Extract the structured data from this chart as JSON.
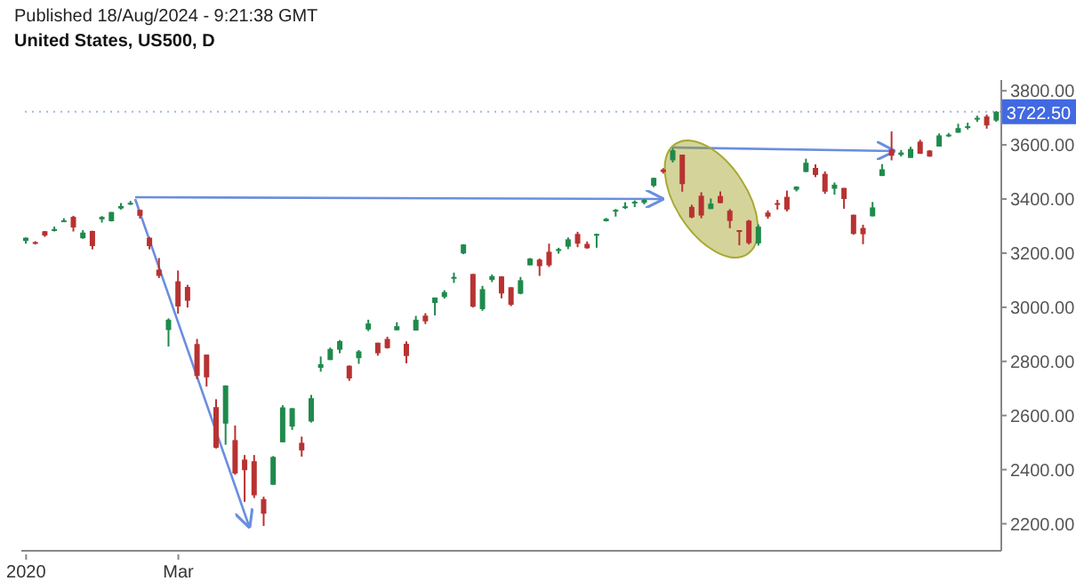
{
  "chart_data": {
    "type": "candlestick",
    "title": "United States, US500, D",
    "subtitle": "Published 18/Aug/2024 - 9:21:38 GMT",
    "categories": [
      "2020",
      null,
      null,
      null,
      null,
      null,
      null,
      null,
      null,
      null,
      null,
      null,
      null,
      null,
      null,
      null,
      "Mar",
      null,
      null,
      null,
      null,
      null,
      null,
      null,
      null,
      null,
      null,
      null,
      null,
      null,
      null,
      null,
      null,
      null,
      null,
      null,
      null,
      null,
      null,
      null,
      null,
      null,
      null,
      null,
      null,
      null,
      null,
      null,
      null,
      null,
      null,
      null,
      null,
      null,
      null,
      null,
      null,
      null,
      null,
      null,
      null,
      null,
      null,
      null,
      null,
      null,
      null,
      null,
      null,
      null,
      null,
      null,
      null,
      null,
      null,
      null,
      null,
      null,
      null,
      null,
      null,
      null,
      null,
      null,
      null,
      null,
      null,
      null,
      null,
      null,
      null,
      null,
      null,
      null,
      null,
      null,
      null,
      null,
      null,
      null,
      null,
      null,
      null
    ],
    "ohlc": [
      [
        3245,
        3258,
        3235,
        3257
      ],
      [
        3241,
        3244,
        3232,
        3237
      ],
      [
        3281,
        3282,
        3260,
        3265
      ],
      [
        3282,
        3298,
        3280,
        3289
      ],
      [
        3321,
        3329,
        3316,
        3321
      ],
      [
        3334,
        3338,
        3280,
        3295
      ],
      [
        3255,
        3285,
        3253,
        3276
      ],
      [
        3282,
        3283,
        3214,
        3226
      ],
      [
        3325,
        3337,
        3313,
        3334
      ],
      [
        3318,
        3352,
        3317,
        3352
      ],
      [
        3365,
        3385,
        3361,
        3374
      ],
      [
        3380,
        3393,
        3378,
        3386
      ],
      [
        3360,
        3360,
        3328,
        3338
      ],
      [
        3257,
        3260,
        3214,
        3226
      ],
      [
        3139,
        3182,
        3108,
        3116
      ],
      [
        2916,
        2959,
        2855,
        2954
      ],
      [
        3096,
        3136,
        2976,
        3003
      ],
      [
        3075,
        3083,
        2999,
        3024
      ],
      [
        2864,
        2883,
        2734,
        2746
      ],
      [
        2825,
        2825,
        2707,
        2741
      ],
      [
        2631,
        2660,
        2478,
        2481
      ],
      [
        2570,
        2711,
        2492,
        2711
      ],
      [
        2509,
        2563,
        2381,
        2386
      ],
      [
        2437,
        2454,
        2281,
        2398
      ],
      [
        2431,
        2454,
        2295,
        2305
      ],
      [
        2291,
        2300,
        2192,
        2237
      ],
      [
        2344,
        2450,
        2344,
        2447
      ],
      [
        2501,
        2638,
        2501,
        2630
      ],
      [
        2559,
        2627,
        2547,
        2627
      ],
      [
        2499,
        2522,
        2448,
        2471
      ],
      [
        2578,
        2676,
        2574,
        2664
      ],
      [
        2776,
        2818,
        2762,
        2790
      ],
      [
        2805,
        2851,
        2805,
        2846
      ],
      [
        2843,
        2879,
        2830,
        2875
      ],
      [
        2784,
        2785,
        2728,
        2737
      ],
      [
        2812,
        2842,
        2791,
        2837
      ],
      [
        2918,
        2954,
        2912,
        2940
      ],
      [
        2869,
        2869,
        2821,
        2830
      ],
      [
        2883,
        2891,
        2847,
        2849
      ],
      [
        2915,
        2945,
        2915,
        2930
      ],
      [
        2865,
        2874,
        2793,
        2820
      ],
      [
        2914,
        2968,
        2914,
        2954
      ],
      [
        2969,
        2978,
        2938,
        2948
      ],
      [
        3016,
        3036,
        2970,
        3036
      ],
      [
        3038,
        3063,
        3032,
        3056
      ],
      [
        3111,
        3128,
        3090,
        3112
      ],
      [
        3199,
        3233,
        3196,
        3232
      ],
      [
        3123,
        3123,
        2999,
        3002
      ],
      [
        2993,
        3079,
        2987,
        3067
      ],
      [
        3101,
        3121,
        3093,
        3115
      ],
      [
        3114,
        3115,
        3033,
        3051
      ],
      [
        3074,
        3074,
        3004,
        3009
      ],
      [
        3050,
        3112,
        3048,
        3100
      ],
      [
        3155,
        3182,
        3155,
        3180
      ],
      [
        3176,
        3180,
        3116,
        3152
      ],
      [
        3205,
        3235,
        3149,
        3155
      ],
      [
        3208,
        3220,
        3198,
        3215
      ],
      [
        3224,
        3258,
        3215,
        3251
      ],
      [
        3271,
        3279,
        3222,
        3235
      ],
      [
        3234,
        3243,
        3216,
        3218
      ],
      [
        3270,
        3272,
        3220,
        3271
      ],
      [
        3318,
        3330,
        3317,
        3327
      ],
      [
        3356,
        3363,
        3335,
        3360
      ],
      [
        3372,
        3388,
        3363,
        3373
      ],
      [
        3387,
        3395,
        3370,
        3390
      ],
      [
        3386,
        3399,
        3380,
        3397
      ],
      [
        3449,
        3479,
        3444,
        3478
      ],
      [
        3509,
        3514,
        3494,
        3500
      ],
      [
        3543,
        3588,
        3535,
        3580
      ],
      [
        3564,
        3564,
        3427,
        3455
      ],
      [
        3371,
        3379,
        3329,
        3332
      ],
      [
        3412,
        3425,
        3329,
        3339
      ],
      [
        3363,
        3402,
        3363,
        3383
      ],
      [
        3411,
        3428,
        3384,
        3385
      ],
      [
        3357,
        3363,
        3292,
        3319
      ],
      [
        3285,
        3285,
        3229,
        3281
      ],
      [
        3320,
        3323,
        3232,
        3237
      ],
      [
        3236,
        3306,
        3228,
        3298
      ],
      [
        3350,
        3358,
        3327,
        3335
      ],
      [
        3385,
        3397,
        3361,
        3380
      ],
      [
        3408,
        3431,
        3354,
        3361
      ],
      [
        3434,
        3447,
        3428,
        3446
      ],
      [
        3500,
        3549,
        3499,
        3534
      ],
      [
        3515,
        3528,
        3481,
        3489
      ],
      [
        3493,
        3502,
        3419,
        3427
      ],
      [
        3438,
        3461,
        3416,
        3453
      ],
      [
        3441,
        3441,
        3364,
        3400
      ],
      [
        3342,
        3342,
        3268,
        3271
      ],
      [
        3293,
        3305,
        3233,
        3270
      ],
      [
        3336,
        3389,
        3336,
        3369
      ],
      [
        3485,
        3529,
        3485,
        3510
      ],
      [
        3583,
        3650,
        3543,
        3560
      ],
      [
        3563,
        3581,
        3557,
        3572
      ],
      [
        3552,
        3593,
        3552,
        3585
      ],
      [
        3612,
        3619,
        3567,
        3567
      ],
      [
        3579,
        3581,
        3556,
        3557
      ],
      [
        3594,
        3642,
        3594,
        3635
      ],
      [
        3638,
        3644,
        3629,
        3638
      ],
      [
        3645,
        3678,
        3645,
        3662
      ],
      [
        3668,
        3682,
        3657,
        3669
      ],
      [
        3694,
        3708,
        3685,
        3700
      ],
      [
        3705,
        3712,
        3660,
        3672
      ],
      [
        3690,
        3725,
        3685,
        3722.5
      ]
    ],
    "ylim": [
      2100,
      3840
    ],
    "yticks": [
      {
        "value": 2200,
        "label": "2200.00"
      },
      {
        "value": 2400,
        "label": "2400.00"
      },
      {
        "value": 2600,
        "label": "2600.00"
      },
      {
        "value": 2800,
        "label": "2800.00"
      },
      {
        "value": 3000,
        "label": "3000.00"
      },
      {
        "value": 3200,
        "label": "3200.00"
      },
      {
        "value": 3400,
        "label": "3400.00"
      },
      {
        "value": 3600,
        "label": "3600.00"
      },
      {
        "value": 3800,
        "label": "3800.00"
      }
    ],
    "ref_lines": [
      {
        "axis": "y",
        "value": 3722.5,
        "label": "3722.50",
        "color": "#4169e1"
      }
    ]
  }
}
